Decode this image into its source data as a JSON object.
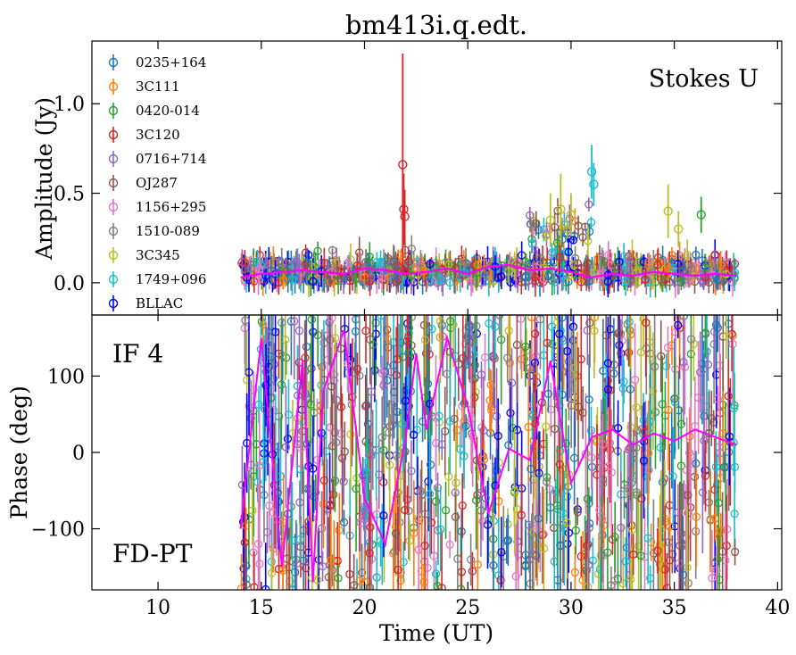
{
  "chart_data": [
    {
      "type": "scatter",
      "title": "bm413i.q.edt.",
      "xlabel": "",
      "ylabel": "Amplitude (Jy)",
      "annotation": "Stokes U",
      "xlim": [
        6.8,
        40.2
      ],
      "ylim": [
        -0.18,
        1.35
      ],
      "yticks": [
        0.0,
        0.5,
        1.0
      ],
      "ytick_labels": [
        "0.0",
        "0.5",
        "1.0"
      ],
      "legend_position": "top-left",
      "legend": [
        {
          "name": "0235+164",
          "color": "#1f77b4"
        },
        {
          "name": "3C111",
          "color": "#ff7f0e"
        },
        {
          "name": "0420-014",
          "color": "#2ca02c"
        },
        {
          "name": "3C120",
          "color": "#d62728"
        },
        {
          "name": "0716+714",
          "color": "#9467bd"
        },
        {
          "name": "OJ287",
          "color": "#8c564b"
        },
        {
          "name": "1156+295",
          "color": "#e377c2"
        },
        {
          "name": "1510-089",
          "color": "#7f7f7f"
        },
        {
          "name": "3C345",
          "color": "#bcbd22"
        },
        {
          "name": "1749+096",
          "color": "#17becf"
        },
        {
          "name": "BLLAC",
          "color": "#0000ff"
        }
      ],
      "series": [
        {
          "name": "3C120",
          "x": [
            21.85,
            21.9,
            21.95
          ],
          "y": [
            0.66,
            0.41,
            0.37
          ],
          "yerr": [
            0.62,
            0.2,
            0.15
          ]
        },
        {
          "name": "3C345",
          "x": [
            29.0,
            29.5,
            30.0,
            34.7,
            35.2
          ],
          "y": [
            0.35,
            0.41,
            0.38,
            0.4,
            0.3
          ],
          "yerr": [
            0.15,
            0.2,
            0.12,
            0.15,
            0.1
          ]
        },
        {
          "name": "1749+096",
          "x": [
            31.0,
            31.1
          ],
          "y": [
            0.62,
            0.55
          ],
          "yerr": [
            0.15,
            0.12
          ]
        },
        {
          "name": "0420-014",
          "x": [
            36.3
          ],
          "y": [
            0.38
          ],
          "yerr": [
            0.1
          ]
        }
      ],
      "model_line": {
        "color": "#ff00ff",
        "x": [
          14.0,
          15.0,
          16.0,
          17.0,
          18.0,
          19.0,
          20.0,
          21.0,
          22.0,
          23.0,
          24.0,
          25.0,
          26.0,
          27.0,
          28.0,
          29.0,
          30.0,
          31.0,
          32.0,
          33.0,
          34.0,
          35.0,
          36.0,
          37.0,
          38.0
        ],
        "y": [
          0.03,
          0.05,
          0.06,
          0.07,
          0.06,
          0.05,
          0.08,
          0.07,
          0.05,
          0.06,
          0.08,
          0.05,
          0.09,
          0.1,
          0.07,
          0.08,
          0.06,
          0.03,
          0.05,
          0.04,
          0.06,
          0.05,
          0.04,
          0.05,
          0.04
        ]
      }
    },
    {
      "type": "scatter",
      "title": "",
      "xlabel": "Time (UT)",
      "ylabel": "Phase (deg)",
      "annotations": [
        "IF 4",
        "FD-PT"
      ],
      "xlim": [
        6.8,
        40.2
      ],
      "ylim": [
        -180,
        180
      ],
      "xticks": [
        10,
        15,
        20,
        25,
        30,
        35,
        40
      ],
      "xtick_labels": [
        "10",
        "15",
        "20",
        "25",
        "30",
        "35",
        "40"
      ],
      "yticks": [
        -100,
        0,
        100
      ],
      "ytick_labels": [
        "−100",
        "0",
        "100"
      ],
      "model_line": {
        "color": "#ff00ff",
        "x": [
          14.0,
          15.0,
          16.0,
          17.0,
          17.5,
          18.0,
          19.0,
          20.0,
          21.0,
          22.0,
          22.5,
          23.0,
          24.0,
          25.0,
          26.0,
          27.0,
          28.0,
          29.0,
          30.0,
          31.0,
          32.0,
          33.0,
          34.0,
          35.0,
          36.0,
          37.0,
          38.0
        ],
        "y": [
          -100,
          150,
          -150,
          120,
          -170,
          80,
          160,
          -60,
          -120,
          20,
          130,
          30,
          150,
          60,
          -80,
          5,
          -10,
          120,
          -40,
          20,
          30,
          10,
          25,
          15,
          30,
          20,
          10
        ]
      }
    }
  ]
}
